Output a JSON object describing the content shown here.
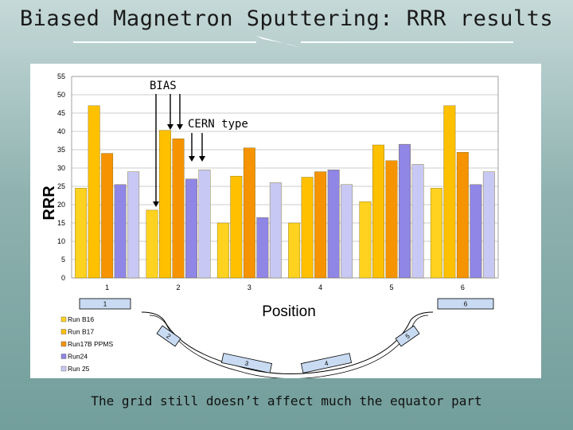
{
  "slide": {
    "title": "Biased Magnetron Sputtering: RRR results",
    "caption": "The grid still doesn’t affect much the equator part"
  },
  "annotations": {
    "bias": "BIAS",
    "cern_type": "CERN type"
  },
  "chart_data": {
    "type": "bar",
    "ylabel": "RRR",
    "xlabel": "Position",
    "ylim": [
      0,
      55
    ],
    "yticks": [
      0,
      5,
      10,
      15,
      20,
      25,
      30,
      35,
      40,
      45,
      50,
      55
    ],
    "grid": true,
    "legend_position": "bottom-left",
    "categories": [
      "1",
      "2",
      "3",
      "4",
      "5",
      "6"
    ],
    "series": [
      {
        "name": "Run B16",
        "color": "#ffd21f",
        "values": [
          24.5,
          18.5,
          15,
          15,
          20.8,
          24.5
        ]
      },
      {
        "name": "Run B17",
        "color": "#ffc000",
        "values": [
          47,
          40.3,
          27.8,
          27.5,
          36.3,
          47
        ]
      },
      {
        "name": "Run17B PPMS",
        "color": "#f59300",
        "values": [
          34,
          38,
          35.5,
          29,
          32,
          34.3
        ]
      },
      {
        "name": "Run24",
        "color": "#8f86e6",
        "values": [
          25.5,
          27,
          16.5,
          29.5,
          36.5,
          25.5
        ]
      },
      {
        "name": "Run 25",
        "color": "#c8c8f4",
        "values": [
          29,
          29.5,
          26,
          25.5,
          31,
          29
        ]
      }
    ],
    "cavity_positions": [
      "1",
      "2",
      "3",
      "4",
      "5",
      "6"
    ]
  },
  "colors": {
    "bar_outline": "#6b5800",
    "arrow": "#000000"
  }
}
